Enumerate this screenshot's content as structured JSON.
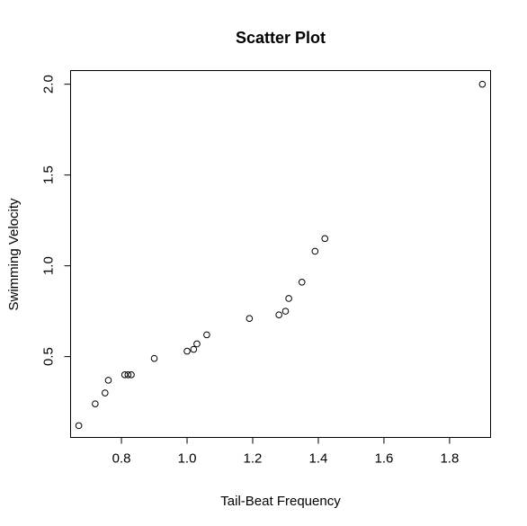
{
  "chart_data": {
    "type": "scatter",
    "title": "Scatter Plot",
    "xlabel": "Tail-Beat Frequency",
    "ylabel": "Swimming Velocity",
    "xlim": [
      0.645,
      1.925
    ],
    "ylim": [
      0.055,
      2.075
    ],
    "xticks": [
      0.8,
      1.0,
      1.2,
      1.4,
      1.6,
      1.8
    ],
    "xtick_labels": [
      "0.8",
      "1.0",
      "1.2",
      "1.4",
      "1.6",
      "1.8"
    ],
    "yticks": [
      0.5,
      1.0,
      1.5,
      2.0
    ],
    "ytick_labels": [
      "0.5",
      "1.0",
      "1.5",
      "2.0"
    ],
    "grid": false,
    "points": [
      {
        "x": 0.67,
        "y": 0.12
      },
      {
        "x": 0.72,
        "y": 0.24
      },
      {
        "x": 0.75,
        "y": 0.3
      },
      {
        "x": 0.76,
        "y": 0.37
      },
      {
        "x": 0.81,
        "y": 0.4
      },
      {
        "x": 0.82,
        "y": 0.4
      },
      {
        "x": 0.83,
        "y": 0.4
      },
      {
        "x": 0.9,
        "y": 0.49
      },
      {
        "x": 1.0,
        "y": 0.53
      },
      {
        "x": 1.02,
        "y": 0.54
      },
      {
        "x": 1.03,
        "y": 0.57
      },
      {
        "x": 1.06,
        "y": 0.62
      },
      {
        "x": 1.19,
        "y": 0.71
      },
      {
        "x": 1.28,
        "y": 0.73
      },
      {
        "x": 1.3,
        "y": 0.75
      },
      {
        "x": 1.31,
        "y": 0.82
      },
      {
        "x": 1.35,
        "y": 0.91
      },
      {
        "x": 1.39,
        "y": 1.08
      },
      {
        "x": 1.42,
        "y": 1.15
      },
      {
        "x": 1.9,
        "y": 2.0
      }
    ]
  }
}
